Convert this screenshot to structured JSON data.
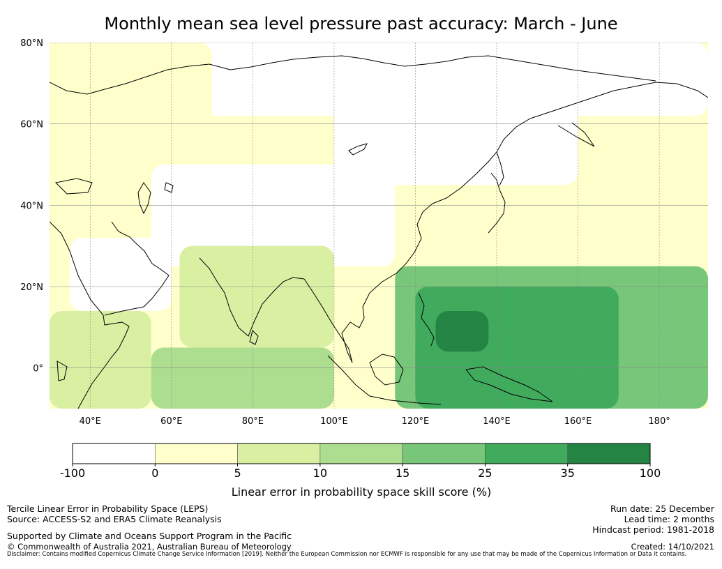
{
  "colors": {
    "white": "#ffffff",
    "c0_5": "#ffffcc",
    "c5_10": "#d9f0a3",
    "c10_15": "#addd8e",
    "c15_25": "#78c679",
    "c25_35": "#41ab5d",
    "c35_100": "#238443",
    "coast": "#000000",
    "grid": "#888888"
  },
  "chart_data": {
    "type": "heatmap",
    "title": "Monthly mean sea level pressure past accuracy: March - June",
    "xaxis": {
      "range_lon": [
        30,
        192
      ],
      "ticks": [
        {
          "value": 40,
          "label": "40°E"
        },
        {
          "value": 60,
          "label": "60°E"
        },
        {
          "value": 80,
          "label": "80°E"
        },
        {
          "value": 100,
          "label": "100°E"
        },
        {
          "value": 120,
          "label": "120°E"
        },
        {
          "value": 140,
          "label": "140°E"
        },
        {
          "value": 160,
          "label": "160°E"
        },
        {
          "value": 180,
          "label": "180°"
        }
      ]
    },
    "yaxis": {
      "range_lat": [
        -10,
        80
      ],
      "ticks": [
        {
          "value": 80,
          "label": "80°N"
        },
        {
          "value": 60,
          "label": "60°N"
        },
        {
          "value": 40,
          "label": "40°N"
        },
        {
          "value": 20,
          "label": "20°N"
        },
        {
          "value": 0,
          "label": "0°"
        }
      ]
    },
    "grid": true,
    "colorbar": {
      "label": "Linear error in probability space skill score (%)",
      "ticks": [
        "-100",
        "0",
        "5",
        "10",
        "15",
        "25",
        "35",
        "100"
      ],
      "bins": [
        {
          "range": [
            -100,
            0
          ],
          "color": "#ffffff"
        },
        {
          "range": [
            0,
            5
          ],
          "color": "#ffffcc"
        },
        {
          "range": [
            5,
            10
          ],
          "color": "#d9f0a3"
        },
        {
          "range": [
            10,
            15
          ],
          "color": "#addd8e"
        },
        {
          "range": [
            15,
            25
          ],
          "color": "#78c679"
        },
        {
          "range": [
            25,
            35
          ],
          "color": "#41ab5d"
        },
        {
          "range": [
            35,
            100
          ],
          "color": "#238443"
        }
      ]
    },
    "regions": [
      {
        "name": "arctic-russia-white",
        "bin": 0,
        "lon": [
          45,
          192
        ],
        "lat": [
          62,
          80
        ]
      },
      {
        "name": "siberia-white",
        "bin": 0,
        "lon": [
          100,
          160
        ],
        "lat": [
          45,
          68
        ]
      },
      {
        "name": "central-asia-white",
        "bin": 0,
        "lon": [
          55,
          115
        ],
        "lat": [
          25,
          50
        ]
      },
      {
        "name": "arabia-white",
        "bin": 0,
        "lon": [
          35,
          60
        ],
        "lat": [
          14,
          32
        ]
      },
      {
        "name": "scandinavia-yellow",
        "bin": 1,
        "lon": [
          30,
          70
        ],
        "lat": [
          58,
          80
        ]
      },
      {
        "name": "europe-yellow",
        "bin": 1,
        "lon": [
          30,
          55
        ],
        "lat": [
          35,
          60
        ]
      },
      {
        "name": "east-pacific-yellow",
        "bin": 1,
        "lon": [
          160,
          192
        ],
        "lat": [
          30,
          62
        ]
      },
      {
        "name": "india-lightgreen",
        "bin": 2,
        "lon": [
          62,
          100
        ],
        "lat": [
          5,
          30
        ]
      },
      {
        "name": "africa-lightgreen",
        "bin": 2,
        "lon": [
          30,
          55
        ],
        "lat": [
          -10,
          14
        ]
      },
      {
        "name": "indian-ocean-green",
        "bin": 3,
        "lon": [
          55,
          100
        ],
        "lat": [
          -10,
          5
        ]
      },
      {
        "name": "pacific-midgreen",
        "bin": 4,
        "lon": [
          115,
          192
        ],
        "lat": [
          -10,
          25
        ]
      },
      {
        "name": "maritime-green",
        "bin": 5,
        "lon": [
          120,
          170
        ],
        "lat": [
          -10,
          20
        ]
      },
      {
        "name": "philippine-sea-darkgreen",
        "bin": 6,
        "lon": [
          125,
          138
        ],
        "lat": [
          4,
          14
        ]
      }
    ]
  },
  "footer": {
    "method": "Tercile Linear Error in Probability Space (LEPS)",
    "source": "Source: ACCESS-S2 and ERA5 Climate Reanalysis",
    "support": "Supported by Climate and Oceans Support Program in the Pacific",
    "copyright": "© Commonwealth of Australia 2021, Australian Bureau of Meteorology",
    "disclaimer": "Disclaimer: Contains modified Copernicus Climate Change Service Information [2019]. Neither the European Commission nor ECMWF is responsible for any use that may be made of the Copernicus Information or Data it contains.",
    "run_date": "Run date: 25 December",
    "lead_time": "Lead time: 2 months",
    "hindcast": "Hindcast period: 1981-2018",
    "created": "Created: 14/10/2021"
  }
}
